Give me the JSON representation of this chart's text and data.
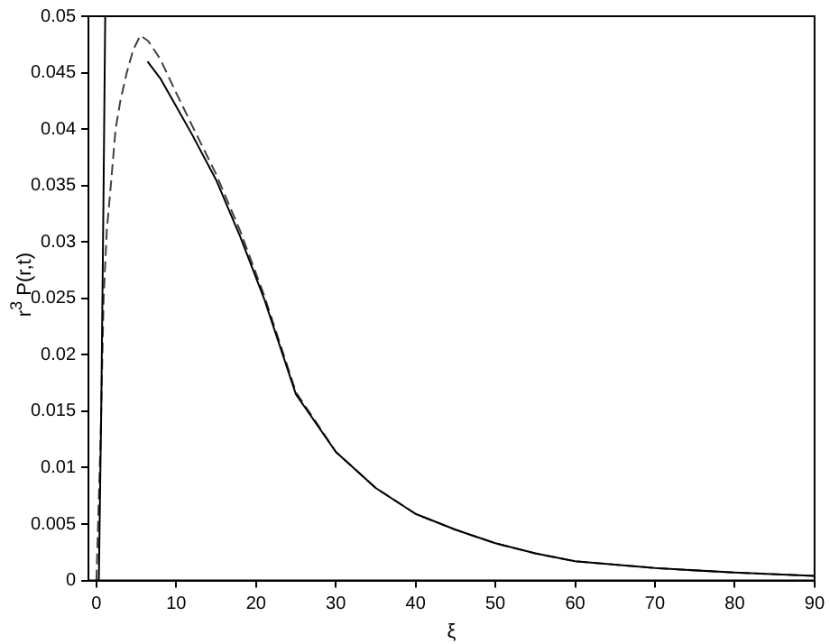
{
  "chart_data": {
    "type": "line",
    "xlabel": "ξ",
    "ylabel": "r$^{3}$ P(r,t)",
    "xlim": [
      -1,
      90
    ],
    "xticks": [
      0,
      10,
      20,
      30,
      40,
      50,
      60,
      70,
      80,
      90
    ],
    "ylim": [
      0,
      0.05
    ],
    "yticks": [
      0,
      0.005,
      0.01,
      0.015,
      0.02,
      0.025,
      0.03,
      0.035,
      0.04,
      0.045,
      0.05
    ],
    "grid": false,
    "legend": false,
    "marker": "none",
    "series": [
      {
        "color": "#000000",
        "line_style": "solid",
        "x": [
          0.3,
          0.6,
          0.9,
          1.1,
          null,
          6.4,
          8,
          10,
          12,
          15,
          18,
          21,
          25,
          30,
          35,
          40,
          45,
          50,
          55,
          60,
          70,
          80,
          90
        ],
        "values": [
          0,
          0.015,
          0.035,
          0.05,
          null,
          0.046,
          0.0445,
          0.042,
          0.0395,
          0.0355,
          0.0305,
          0.025,
          0.0165,
          0.0114,
          0.0082,
          0.0059,
          0.0045,
          0.0033,
          0.0024,
          0.0017,
          0.0011,
          0.0007,
          0.0004
        ]
      },
      {
        "color": "#404040",
        "line_style": "dashed",
        "x": [
          0,
          0.5,
          0.9,
          1.3,
          1.8,
          2.4,
          3,
          3.8,
          4.6,
          5.5,
          6.5,
          8,
          10,
          12,
          15,
          18,
          21,
          25,
          30,
          35,
          40,
          45,
          50,
          55,
          60,
          70,
          80,
          90
        ],
        "values": [
          0,
          0.012,
          0.025,
          0.031,
          0.035,
          0.04,
          0.0425,
          0.045,
          0.047,
          0.0483,
          0.0478,
          0.0462,
          0.0432,
          0.0403,
          0.036,
          0.031,
          0.0253,
          0.0167,
          0.0114,
          0.0082,
          0.0059,
          0.0045,
          0.0033,
          0.0024,
          0.0017,
          0.0011,
          0.0007,
          0.0004
        ]
      }
    ]
  }
}
